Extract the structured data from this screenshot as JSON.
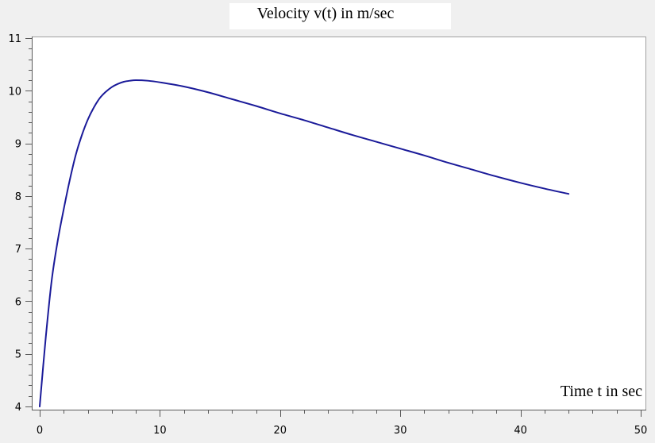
{
  "chart_data": {
    "type": "line",
    "title": "Velocity v(t) in m/sec",
    "xlabel": "Time t in sec",
    "ylabel": "",
    "xlim": [
      0,
      50
    ],
    "ylim": [
      4,
      11
    ],
    "x_ticks": [
      0,
      10,
      20,
      30,
      40,
      50
    ],
    "y_ticks": [
      4,
      5,
      6,
      7,
      8,
      9,
      10,
      11
    ],
    "grid": false,
    "series": [
      {
        "color": "#1a1a99",
        "x": [
          0,
          0.5,
          1,
          1.5,
          2,
          2.5,
          3,
          3.5,
          4,
          4.5,
          5,
          5.5,
          6,
          6.5,
          7,
          7.5,
          8,
          9,
          10,
          12,
          14,
          16,
          18,
          20,
          22,
          24,
          26,
          28,
          30,
          32,
          34,
          36,
          38,
          40,
          42,
          44
        ],
        "y": [
          4.0,
          5.3,
          6.4,
          7.15,
          7.75,
          8.3,
          8.78,
          9.15,
          9.45,
          9.68,
          9.86,
          9.98,
          10.07,
          10.13,
          10.17,
          10.19,
          10.2,
          10.19,
          10.16,
          10.08,
          9.97,
          9.84,
          9.71,
          9.57,
          9.44,
          9.3,
          9.16,
          9.03,
          8.9,
          8.77,
          8.63,
          8.5,
          8.37,
          8.25,
          8.14,
          8.04
        ]
      }
    ]
  }
}
